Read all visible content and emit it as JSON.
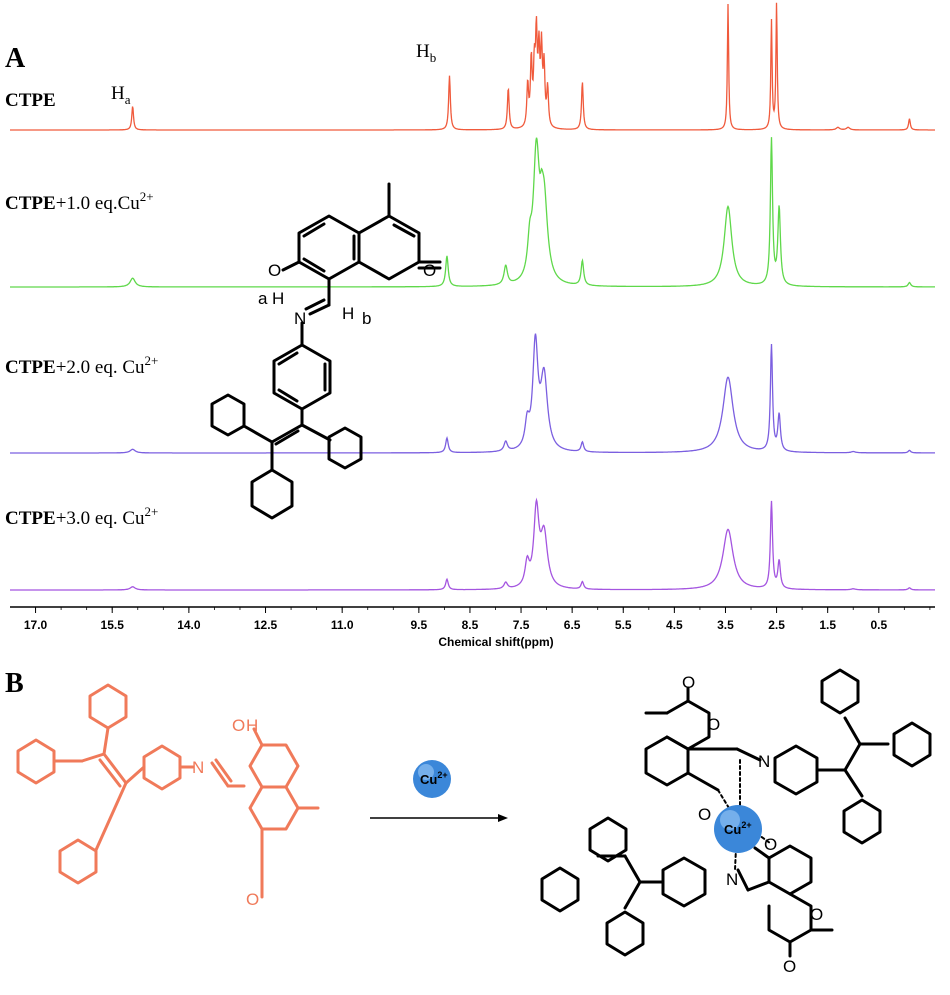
{
  "panels": {
    "a": "A",
    "b": "B"
  },
  "colors": {
    "CTPE": "#f05a3c",
    "CTPE+1.0 eq.Cu2+": "#5fd84a",
    "CTPE+2.0 eq. Cu2+": "#7b5fe0",
    "CTPE+3.0 eq. Cu2+": "#a455e0",
    "reactant": "#f07a5a",
    "ion_sphere": "#3b87d9"
  },
  "trace_labels": [
    {
      "bold": "CTPE",
      "rest": "",
      "sup": ""
    },
    {
      "bold": "CTPE",
      "rest": "+1.0 eq.Cu",
      "sup": "2+"
    },
    {
      "bold": "CTPE",
      "rest": "+2.0 eq. Cu",
      "sup": "2+"
    },
    {
      "bold": "CTPE",
      "rest": "+3.0 eq. Cu",
      "sup": "2+"
    }
  ],
  "peak_labels": {
    "ha": {
      "main": "H",
      "sub": "a"
    },
    "hb": {
      "main": "H",
      "sub": "b"
    }
  },
  "structure_labels": {
    "O": "O",
    "H": "H",
    "a": "a",
    "N": "N",
    "b": "b",
    "ion": "Cu",
    "ion_charge": "2+"
  },
  "chart_data": {
    "type": "line",
    "title": "",
    "xlabel": "Chemical shift(ppm)",
    "ylabel": "",
    "xlim": [
      17.5,
      -0.6
    ],
    "x_reversed": true,
    "x_ticks": [
      {
        "v": 17.0,
        "t": "17.0"
      },
      {
        "v": 15.5,
        "t": "15.5"
      },
      {
        "v": 14.0,
        "t": "14.0"
      },
      {
        "v": 12.5,
        "t": "12.5"
      },
      {
        "v": 11.0,
        "t": "11.0"
      },
      {
        "v": 9.5,
        "t": "9.5"
      },
      {
        "v": 8.5,
        "t": "8.5"
      },
      {
        "v": 7.5,
        "t": "7.5"
      },
      {
        "v": 6.5,
        "t": "6.5"
      },
      {
        "v": 5.5,
        "t": "5.5"
      },
      {
        "v": 4.5,
        "t": "4.5"
      },
      {
        "v": 3.5,
        "t": "3.5"
      },
      {
        "v": 2.5,
        "t": "2.5"
      },
      {
        "v": 1.5,
        "t": "1.5"
      },
      {
        "v": 0.5,
        "t": "0.5"
      }
    ],
    "series": [
      {
        "name": "CTPE",
        "peaks": [
          [
            15.1,
            0.19,
            0.02
          ],
          [
            8.9,
            0.43,
            0.02
          ],
          [
            7.75,
            0.33,
            0.02
          ],
          [
            7.37,
            0.34,
            0.02
          ],
          [
            7.3,
            0.52,
            0.02
          ],
          [
            7.24,
            0.44,
            0.02
          ],
          [
            7.2,
            0.69,
            0.02
          ],
          [
            7.15,
            0.56,
            0.02
          ],
          [
            7.1,
            0.59,
            0.02
          ],
          [
            7.05,
            0.46,
            0.02
          ],
          [
            6.98,
            0.31,
            0.02
          ],
          [
            6.3,
            0.38,
            0.02
          ],
          [
            3.45,
            1.0,
            0.015
          ],
          [
            2.6,
            0.86,
            0.015
          ],
          [
            2.5,
            1.0,
            0.015
          ],
          [
            1.3,
            0.02,
            0.04
          ],
          [
            1.1,
            0.02,
            0.04
          ],
          [
            -0.1,
            0.09,
            0.02
          ]
        ]
      },
      {
        "name": "CTPE+1.0 eq.Cu2+",
        "peaks": [
          [
            15.1,
            0.06,
            0.06
          ],
          [
            8.95,
            0.21,
            0.03
          ],
          [
            7.8,
            0.13,
            0.04
          ],
          [
            7.33,
            0.22,
            0.05
          ],
          [
            7.2,
            0.86,
            0.07
          ],
          [
            7.05,
            0.55,
            0.08
          ],
          [
            7.1,
            0.12,
            0.03
          ],
          [
            6.3,
            0.17,
            0.03
          ],
          [
            3.45,
            0.55,
            0.09
          ],
          [
            2.6,
            1.0,
            0.025
          ],
          [
            2.45,
            0.53,
            0.03
          ],
          [
            -0.1,
            0.03,
            0.03
          ]
        ]
      },
      {
        "name": "CTPE+2.0 eq. Cu2+",
        "peaks": [
          [
            15.1,
            0.03,
            0.06
          ],
          [
            8.95,
            0.12,
            0.03
          ],
          [
            7.8,
            0.08,
            0.04
          ],
          [
            7.38,
            0.2,
            0.05
          ],
          [
            7.22,
            0.85,
            0.06
          ],
          [
            7.05,
            0.6,
            0.08
          ],
          [
            6.3,
            0.08,
            0.03
          ],
          [
            3.45,
            0.62,
            0.12
          ],
          [
            2.6,
            0.87,
            0.025
          ],
          [
            2.45,
            0.3,
            0.03
          ],
          [
            1.0,
            0.01,
            0.05
          ],
          [
            -0.1,
            0.02,
            0.03
          ]
        ]
      },
      {
        "name": "CTPE+3.0 eq. Cu2+",
        "peaks": [
          [
            15.1,
            0.03,
            0.06
          ],
          [
            8.95,
            0.1,
            0.03
          ],
          [
            7.8,
            0.06,
            0.04
          ],
          [
            7.38,
            0.22,
            0.05
          ],
          [
            7.2,
            0.72,
            0.06
          ],
          [
            7.05,
            0.5,
            0.08
          ],
          [
            6.3,
            0.07,
            0.03
          ],
          [
            3.45,
            0.57,
            0.12
          ],
          [
            2.6,
            0.82,
            0.025
          ],
          [
            2.45,
            0.26,
            0.03
          ],
          [
            1.0,
            0.01,
            0.05
          ],
          [
            -0.1,
            0.02,
            0.03
          ]
        ]
      }
    ],
    "grid": false,
    "legend": "none"
  }
}
